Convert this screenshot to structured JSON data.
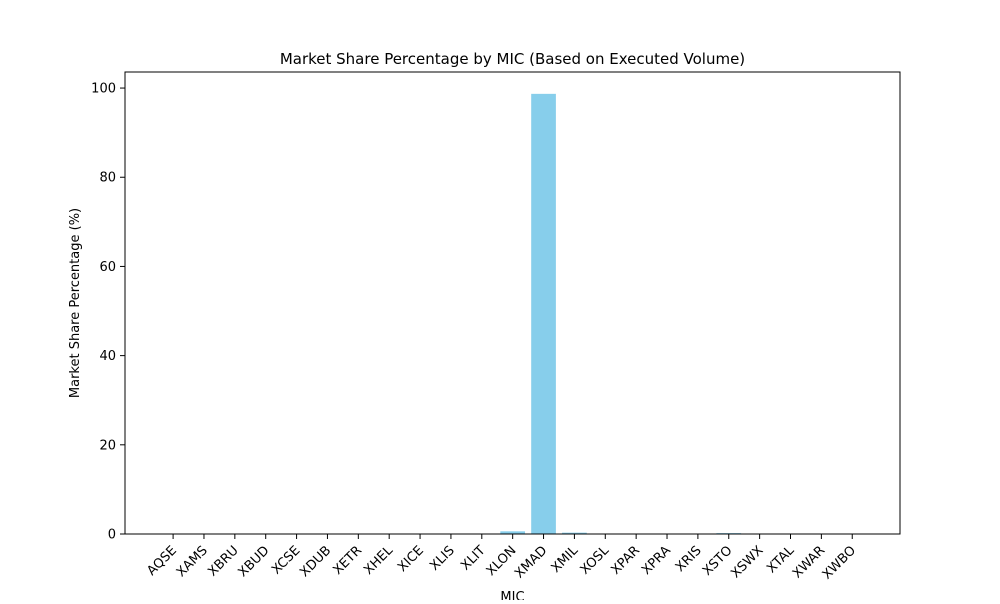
{
  "chart_data": {
    "type": "bar",
    "title": "Market Share Percentage by MIC (Based on Executed Volume)",
    "xlabel": "MIC",
    "ylabel": "Market Share Percentage (%)",
    "categories": [
      "AQSE",
      "XAMS",
      "XBRU",
      "XBUD",
      "XCSE",
      "XDUB",
      "XETR",
      "XHEL",
      "XICE",
      "XLIS",
      "XLIT",
      "XLON",
      "XMAD",
      "XMIL",
      "XOSL",
      "XPAR",
      "XPRA",
      "XRIS",
      "XSTO",
      "XSWX",
      "XTAL",
      "XWAR",
      "XWBO"
    ],
    "values": [
      0.0,
      0.0,
      0.0,
      0.0,
      0.0,
      0.0,
      0.0,
      0.0,
      0.0,
      0.0,
      0.0,
      0.6,
      98.7,
      0.3,
      0.0,
      0.0,
      0.0,
      0.0,
      0.2,
      0.0,
      0.0,
      0.0,
      0.0
    ],
    "yticks": [
      0,
      20,
      40,
      60,
      80,
      100
    ],
    "ylim": [
      0,
      103.6
    ],
    "grid": false,
    "legend": "none",
    "bar_color": "#87ceeb"
  }
}
